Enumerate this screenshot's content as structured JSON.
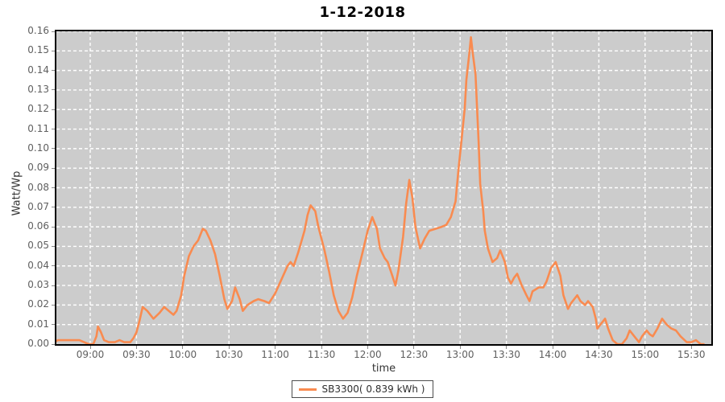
{
  "window": {
    "title": "1-12-2018"
  },
  "colors": {
    "plot_background": "#cccccc",
    "grid_line": "#ffffff",
    "plot_border": "#000000",
    "series_orange": "#f98b50",
    "tick_text": "#5f5f5f",
    "page_background": "#ffffff"
  },
  "chart_data": {
    "type": "line",
    "title": "1-12-2018",
    "xlabel": "time",
    "ylabel": "Watt/Wp",
    "grid": "white dashed on gray plot, every 0.01 horizontal and every 30 min vertical",
    "legend_position": "bottom-center",
    "x_unit": "minutes-since-midnight",
    "xlim": [
      517,
      944
    ],
    "ylim": [
      0,
      0.16
    ],
    "y_tick_step": 0.01,
    "y_tick_labels": [
      "0.00",
      "0.01",
      "0.02",
      "0.03",
      "0.04",
      "0.05",
      "0.06",
      "0.07",
      "0.08",
      "0.09",
      "0.10",
      "0.11",
      "0.12",
      "0.13",
      "0.14",
      "0.15",
      "0.16"
    ],
    "x_ticks": [
      {
        "t": 540,
        "label": "09:00"
      },
      {
        "t": 570,
        "label": "09:30"
      },
      {
        "t": 600,
        "label": "10:00"
      },
      {
        "t": 630,
        "label": "10:30"
      },
      {
        "t": 660,
        "label": "11:00"
      },
      {
        "t": 690,
        "label": "11:30"
      },
      {
        "t": 720,
        "label": "12:00"
      },
      {
        "t": 750,
        "label": "12:30"
      },
      {
        "t": 780,
        "label": "13:00"
      },
      {
        "t": 810,
        "label": "13:30"
      },
      {
        "t": 840,
        "label": "14:00"
      },
      {
        "t": 870,
        "label": "14:30"
      },
      {
        "t": 900,
        "label": "15:00"
      },
      {
        "t": 930,
        "label": "15:30"
      }
    ],
    "legend": {
      "entries": [
        {
          "label": "SB3300( 0.839 kWh )",
          "color": "#f98b50"
        }
      ]
    },
    "series": [
      {
        "name": "SB3300( 0.839 kWh )",
        "color": "#f98b50",
        "points": [
          [
            517,
            0.001
          ],
          [
            519,
            0.002
          ],
          [
            527,
            0.002
          ],
          [
            533,
            0.002
          ],
          [
            536,
            0.001
          ],
          [
            539,
            0.0
          ],
          [
            542,
            0.0
          ],
          [
            544,
            0.004
          ],
          [
            545,
            0.009
          ],
          [
            547,
            0.006
          ],
          [
            549,
            0.002
          ],
          [
            552,
            0.001
          ],
          [
            556,
            0.001
          ],
          [
            559,
            0.002
          ],
          [
            562,
            0.001
          ],
          [
            566,
            0.001
          ],
          [
            568,
            0.003
          ],
          [
            570,
            0.006
          ],
          [
            572,
            0.012
          ],
          [
            574,
            0.019
          ],
          [
            577,
            0.017
          ],
          [
            581,
            0.013
          ],
          [
            585,
            0.016
          ],
          [
            588,
            0.019
          ],
          [
            591,
            0.017
          ],
          [
            594,
            0.015
          ],
          [
            596,
            0.017
          ],
          [
            599,
            0.025
          ],
          [
            601,
            0.035
          ],
          [
            604,
            0.045
          ],
          [
            607,
            0.05
          ],
          [
            610,
            0.053
          ],
          [
            613,
            0.059
          ],
          [
            615,
            0.058
          ],
          [
            618,
            0.053
          ],
          [
            621,
            0.046
          ],
          [
            624,
            0.035
          ],
          [
            627,
            0.023
          ],
          [
            629,
            0.018
          ],
          [
            632,
            0.022
          ],
          [
            634,
            0.029
          ],
          [
            637,
            0.023
          ],
          [
            639,
            0.017
          ],
          [
            642,
            0.02
          ],
          [
            646,
            0.022
          ],
          [
            649,
            0.023
          ],
          [
            653,
            0.022
          ],
          [
            656,
            0.021
          ],
          [
            660,
            0.026
          ],
          [
            664,
            0.033
          ],
          [
            668,
            0.04
          ],
          [
            670,
            0.042
          ],
          [
            672,
            0.04
          ],
          [
            675,
            0.047
          ],
          [
            679,
            0.058
          ],
          [
            681,
            0.066
          ],
          [
            683,
            0.071
          ],
          [
            686,
            0.068
          ],
          [
            688,
            0.06
          ],
          [
            692,
            0.048
          ],
          [
            695,
            0.037
          ],
          [
            698,
            0.025
          ],
          [
            701,
            0.017
          ],
          [
            704,
            0.013
          ],
          [
            707,
            0.016
          ],
          [
            710,
            0.024
          ],
          [
            713,
            0.035
          ],
          [
            717,
            0.048
          ],
          [
            720,
            0.058
          ],
          [
            723,
            0.065
          ],
          [
            726,
            0.059
          ],
          [
            728,
            0.049
          ],
          [
            731,
            0.044
          ],
          [
            733,
            0.042
          ],
          [
            736,
            0.035
          ],
          [
            738,
            0.03
          ],
          [
            740,
            0.038
          ],
          [
            743,
            0.055
          ],
          [
            745,
            0.072
          ],
          [
            747,
            0.084
          ],
          [
            749,
            0.075
          ],
          [
            751,
            0.06
          ],
          [
            754,
            0.049
          ],
          [
            757,
            0.054
          ],
          [
            760,
            0.058
          ],
          [
            764,
            0.059
          ],
          [
            768,
            0.06
          ],
          [
            771,
            0.061
          ],
          [
            774,
            0.065
          ],
          [
            777,
            0.073
          ],
          [
            779,
            0.09
          ],
          [
            781,
            0.105
          ],
          [
            783,
            0.121
          ],
          [
            784,
            0.135
          ],
          [
            786,
            0.149
          ],
          [
            787,
            0.157
          ],
          [
            788,
            0.15
          ],
          [
            790,
            0.138
          ],
          [
            791,
            0.12
          ],
          [
            792,
            0.103
          ],
          [
            793,
            0.082
          ],
          [
            795,
            0.068
          ],
          [
            796,
            0.058
          ],
          [
            798,
            0.049
          ],
          [
            801,
            0.042
          ],
          [
            804,
            0.044
          ],
          [
            806,
            0.048
          ],
          [
            809,
            0.042
          ],
          [
            811,
            0.034
          ],
          [
            813,
            0.031
          ],
          [
            815,
            0.034
          ],
          [
            817,
            0.036
          ],
          [
            820,
            0.03
          ],
          [
            823,
            0.025
          ],
          [
            825,
            0.022
          ],
          [
            827,
            0.027
          ],
          [
            831,
            0.029
          ],
          [
            834,
            0.029
          ],
          [
            836,
            0.032
          ],
          [
            839,
            0.039
          ],
          [
            842,
            0.042
          ],
          [
            845,
            0.035
          ],
          [
            847,
            0.025
          ],
          [
            850,
            0.018
          ],
          [
            852,
            0.021
          ],
          [
            856,
            0.025
          ],
          [
            858,
            0.022
          ],
          [
            861,
            0.02
          ],
          [
            863,
            0.022
          ],
          [
            866,
            0.019
          ],
          [
            868,
            0.013
          ],
          [
            869,
            0.008
          ],
          [
            871,
            0.01
          ],
          [
            874,
            0.013
          ],
          [
            876,
            0.008
          ],
          [
            879,
            0.002
          ],
          [
            882,
            0.0
          ],
          [
            885,
            0.0
          ],
          [
            888,
            0.003
          ],
          [
            890,
            0.007
          ],
          [
            893,
            0.004
          ],
          [
            896,
            0.001
          ],
          [
            898,
            0.004
          ],
          [
            901,
            0.007
          ],
          [
            903,
            0.005
          ],
          [
            905,
            0.004
          ],
          [
            908,
            0.008
          ],
          [
            911,
            0.013
          ],
          [
            914,
            0.01
          ],
          [
            917,
            0.008
          ],
          [
            920,
            0.007
          ],
          [
            923,
            0.004
          ],
          [
            927,
            0.001
          ],
          [
            930,
            0.001
          ],
          [
            933,
            0.002
          ],
          [
            936,
            0.0
          ],
          [
            938,
            0.0
          ]
        ]
      }
    ]
  }
}
